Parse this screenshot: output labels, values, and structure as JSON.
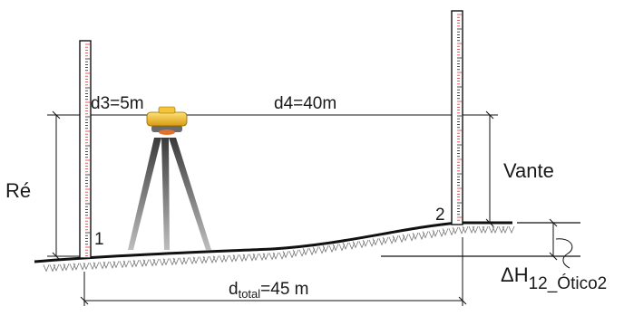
{
  "diagram": {
    "labels": {
      "d3": "d3=5m",
      "d4": "d4=40m",
      "re": "Ré",
      "vante": "Vante",
      "point1": "1",
      "point2": "2",
      "dtotal_main": "d",
      "dtotal_sub": "total",
      "dtotal_value": "=45 m",
      "delta_h_main": "ΔH",
      "delta_h_sub": "12_Ótico2"
    },
    "colors": {
      "rod_tick": "#d43a3a",
      "instrument": "#f2b51b",
      "lens_ring": "#e0722b",
      "tripod": "#7a7a7a",
      "line": "#111111"
    }
  }
}
